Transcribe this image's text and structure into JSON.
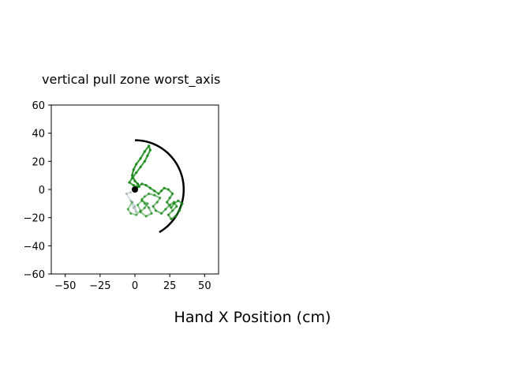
{
  "chart_data": {
    "type": "line",
    "title": "vertical pull zone worst_axis",
    "xlabel": "Hand X Position (cm)",
    "ylabel": "",
    "xlim": [
      -60,
      60
    ],
    "ylim": [
      -60,
      60
    ],
    "xticks": [
      -50,
      -25,
      0,
      25,
      50
    ],
    "yticks": [
      -60,
      -40,
      -20,
      0,
      20,
      40,
      60
    ],
    "xtick_labels": [
      "−50",
      "−25",
      "0",
      "25",
      "50"
    ],
    "ytick_labels": [
      "−60",
      "−40",
      "−20",
      "0",
      "20",
      "40",
      "60"
    ],
    "grid": false,
    "colors": {
      "trajectory": "#1a8a1a",
      "trajectory_start": "#8aa6a0",
      "zone_arc": "#000000",
      "start_marker": "#000000"
    },
    "zone_arc": {
      "radius": 35,
      "theta_start_deg": 90,
      "theta_end_deg": -60
    },
    "start_point": [
      0,
      0
    ],
    "series": [
      {
        "x": [
          -3,
          -6,
          -3,
          -1,
          1,
          0,
          -2,
          -5,
          -3,
          1,
          4,
          2,
          5,
          9,
          7,
          4,
          8,
          12,
          10,
          7,
          5,
          7,
          10,
          14,
          18,
          16,
          13,
          15,
          19,
          22,
          25,
          28,
          30,
          27,
          24,
          26,
          29,
          32,
          34,
          31,
          28,
          26,
          23,
          25,
          27,
          24,
          21,
          19,
          17,
          14,
          11,
          8,
          5,
          2,
          -1,
          -4,
          -2,
          1,
          4,
          7,
          9,
          11,
          10,
          7,
          4,
          1,
          -1,
          -2,
          0,
          2,
          3,
          1,
          0,
          -1,
          0
        ],
        "y": [
          -2,
          -3,
          -8,
          -13,
          -16,
          -12,
          -9,
          -14,
          -17,
          -18,
          -15,
          -11,
          -8,
          -10,
          -13,
          -16,
          -19,
          -17,
          -13,
          -10,
          -7,
          -5,
          -3,
          -4,
          -6,
          -9,
          -12,
          -15,
          -17,
          -14,
          -11,
          -9,
          -12,
          -15,
          -18,
          -21,
          -19,
          -15,
          -10,
          -8,
          -10,
          -13,
          -9,
          -6,
          -3,
          0,
          1,
          -1,
          -3,
          -1,
          1,
          3,
          4,
          2,
          3,
          5,
          8,
          12,
          16,
          20,
          24,
          28,
          31,
          27,
          22,
          18,
          14,
          10,
          6,
          4,
          2,
          1,
          0,
          1,
          0
        ]
      }
    ]
  }
}
